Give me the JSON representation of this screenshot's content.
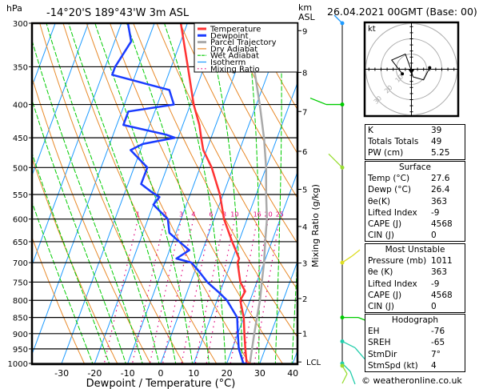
{
  "header": {
    "hpa_label": "hPa",
    "location": "-14°20'S  189°43'W  3m  ASL",
    "km_label": "km",
    "asl_label": "ASL",
    "datetime": "26.04.2021  00GMT  (Base: 00)"
  },
  "chart_data": {
    "type": "line",
    "title": "Skew-T log-P diagram",
    "xlabel": "Dewpoint / Temperature (°C)",
    "ylabel": "hPa",
    "right_ylabel": "Mixing Ratio (g/kg)",
    "xlim": [
      -40,
      40
    ],
    "ylim_hpa": [
      1000,
      300
    ],
    "x_ticks": [
      -30,
      -20,
      -10,
      0,
      10,
      20,
      30,
      40
    ],
    "pressure_levels": [
      300,
      350,
      400,
      450,
      500,
      550,
      600,
      650,
      700,
      750,
      800,
      850,
      900,
      950,
      1000
    ],
    "km_ticks": [
      {
        "km": "9",
        "hpa": 308
      },
      {
        "km": "8",
        "hpa": 357
      },
      {
        "km": "7",
        "hpa": 410
      },
      {
        "km": "6",
        "hpa": 472
      },
      {
        "km": "5",
        "hpa": 540
      },
      {
        "km": "4",
        "hpa": 616
      },
      {
        "km": "3",
        "hpa": 701
      },
      {
        "km": "2",
        "hpa": 795
      },
      {
        "km": "1",
        "hpa": 899
      },
      {
        "km": "LCL",
        "hpa": 995
      }
    ],
    "mixing_ratio_labels": [
      "1",
      "2",
      "3",
      "4",
      "6",
      "8",
      "10",
      "16",
      "20",
      "25"
    ],
    "legend": {
      "position": "top-center",
      "entries": [
        {
          "label": "Temperature",
          "color": "#ff3333",
          "style": "solid-thick"
        },
        {
          "label": "Dewpoint",
          "color": "#1a3cff",
          "style": "solid-thick"
        },
        {
          "label": "Parcel Trajectory",
          "color": "#aaaaaa",
          "style": "solid-thick"
        },
        {
          "label": "Dry Adiabat",
          "color": "#e88a2a",
          "style": "solid"
        },
        {
          "label": "Wet Adiabat",
          "color": "#00cc00",
          "style": "dashed"
        },
        {
          "label": "Isotherm",
          "color": "#1e9bff",
          "style": "solid"
        },
        {
          "label": "Mixing Ratio",
          "color": "#e0007a",
          "style": "dotted"
        }
      ]
    },
    "series": [
      {
        "name": "Temperature",
        "color": "#ff3333",
        "points": [
          [
            300,
            -32
          ],
          [
            350,
            -25
          ],
          [
            400,
            -19
          ],
          [
            430,
            -15
          ],
          [
            450,
            -13
          ],
          [
            470,
            -11
          ],
          [
            500,
            -6.5
          ],
          [
            550,
            -1
          ],
          [
            600,
            3
          ],
          [
            650,
            8
          ],
          [
            690,
            12
          ],
          [
            700,
            12
          ],
          [
            750,
            15
          ],
          [
            775,
            17.5
          ],
          [
            800,
            17
          ],
          [
            850,
            20
          ],
          [
            900,
            22
          ],
          [
            950,
            24
          ],
          [
            1000,
            26
          ],
          [
            1011,
            27.6
          ]
        ]
      },
      {
        "name": "Dewpoint",
        "color": "#1a3cff",
        "points": [
          [
            300,
            -48
          ],
          [
            320,
            -45
          ],
          [
            350,
            -47
          ],
          [
            360,
            -47
          ],
          [
            380,
            -28
          ],
          [
            400,
            -25
          ],
          [
            410,
            -38
          ],
          [
            430,
            -38
          ],
          [
            445,
            -24
          ],
          [
            450,
            -21
          ],
          [
            460,
            -30
          ],
          [
            470,
            -33
          ],
          [
            500,
            -26
          ],
          [
            530,
            -26
          ],
          [
            545,
            -22
          ],
          [
            555,
            -19
          ],
          [
            570,
            -20
          ],
          [
            600,
            -14
          ],
          [
            630,
            -12
          ],
          [
            650,
            -8
          ],
          [
            670,
            -4
          ],
          [
            690,
            -7
          ],
          [
            700,
            -2
          ],
          [
            720,
            1
          ],
          [
            750,
            5
          ],
          [
            780,
            10
          ],
          [
            800,
            13
          ],
          [
            850,
            18
          ],
          [
            900,
            20
          ],
          [
            950,
            22
          ],
          [
            1000,
            25
          ],
          [
            1011,
            26.4
          ]
        ]
      },
      {
        "name": "Parcel Trajectory",
        "color": "#aaaaaa",
        "points": [
          [
            300,
            -13
          ],
          [
            350,
            -5
          ],
          [
            400,
            1
          ],
          [
            450,
            6
          ],
          [
            500,
            10
          ],
          [
            550,
            13
          ],
          [
            600,
            16
          ],
          [
            650,
            18
          ],
          [
            700,
            20
          ],
          [
            750,
            21.5
          ],
          [
            800,
            23
          ],
          [
            850,
            24
          ],
          [
            900,
            25
          ],
          [
            950,
            26
          ],
          [
            1000,
            27
          ],
          [
            1011,
            27.6
          ]
        ]
      }
    ],
    "wind_barbs": [
      {
        "hpa": 300,
        "color": "#1e9bff"
      },
      {
        "hpa": 400,
        "color": "#00cc00"
      },
      {
        "hpa": 500,
        "color": "#99dd33"
      },
      {
        "hpa": 700,
        "color": "#dddd22"
      },
      {
        "hpa": 850,
        "color": "#00cc00"
      },
      {
        "hpa": 925,
        "color": "#22ccaa"
      },
      {
        "hpa": 1000,
        "color": "#22ccaa"
      },
      {
        "hpa": 1011,
        "color": "#99dd33"
      }
    ],
    "hodograph": {
      "unit_label": "kt",
      "ring_labels": [
        "10",
        "20",
        "30"
      ],
      "points_kt": [
        [
          -6,
          -3
        ],
        [
          -13,
          6
        ],
        [
          -4,
          10
        ],
        [
          0,
          -1
        ],
        [
          1,
          -5
        ],
        [
          8,
          -7
        ],
        [
          12,
          1
        ]
      ]
    }
  },
  "indices": {
    "k_label": "K",
    "k": "39",
    "tt_label": "Totals Totals",
    "tt": "49",
    "pw_label": "PW (cm)",
    "pw": "5.25"
  },
  "surface": {
    "title": "Surface",
    "temp_label": "Temp (°C)",
    "temp": "27.6",
    "dewp_label": "Dewp (°C)",
    "dewp": "26.4",
    "theta_label": "θe(K)",
    "theta": "363",
    "li_label": "Lifted Index",
    "li": "-9",
    "cape_label": "CAPE (J)",
    "cape": "4568",
    "cin_label": "CIN (J)",
    "cin": "0"
  },
  "most_unstable": {
    "title": "Most Unstable",
    "pres_label": "Pressure (mb)",
    "pres": "1011",
    "theta_label": "θe (K)",
    "theta": "363",
    "li_label": "Lifted Index",
    "li": "-9",
    "cape_label": "CAPE (J)",
    "cape": "4568",
    "cin_label": "CIN (J)",
    "cin": "0"
  },
  "hodograph_panel": {
    "title": "Hodograph",
    "eh_label": "EH",
    "eh": "-76",
    "sreh_label": "SREH",
    "sreh": "-65",
    "stmdir_label": "StmDir",
    "stmdir": "7°",
    "stmspd_label": "StmSpd (kt)",
    "stmspd": "4"
  },
  "footer": {
    "copyright": "© weatheronline.co.uk"
  }
}
